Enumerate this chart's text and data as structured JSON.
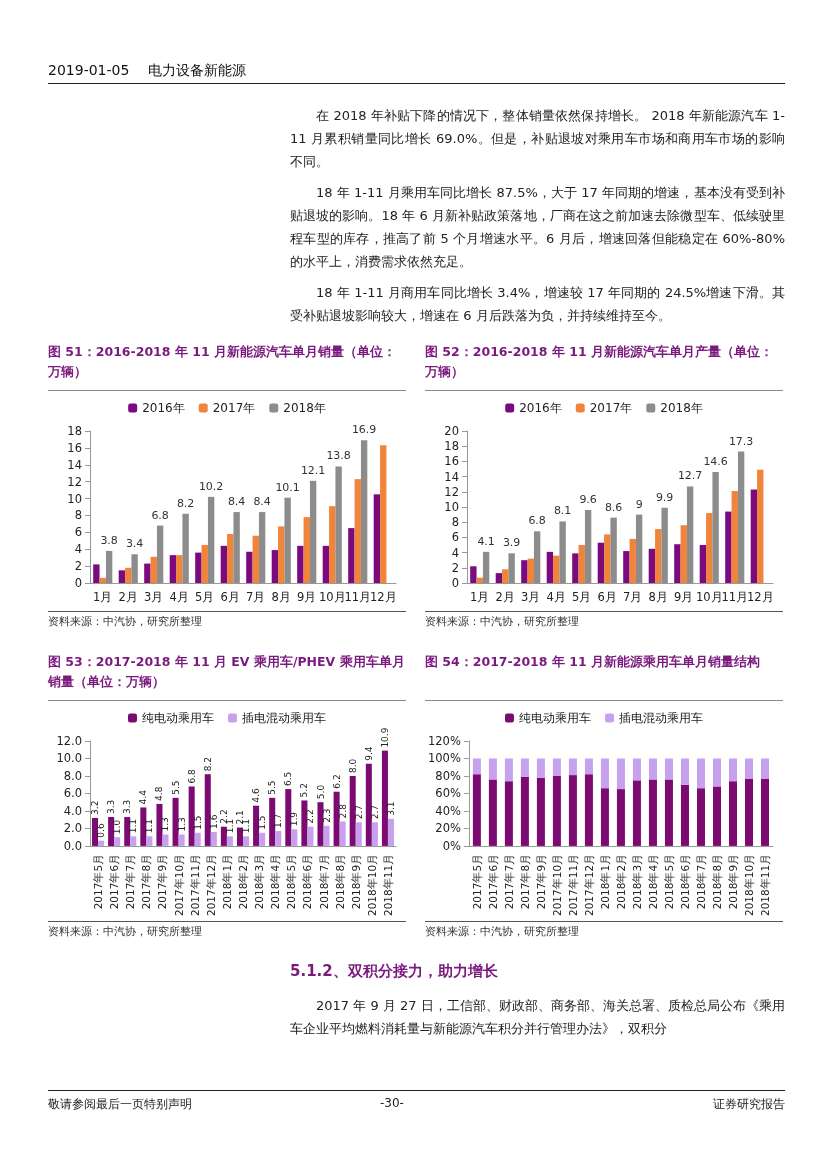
{
  "chart_data": [
    {
      "type": "bar",
      "title": "图 51：2016-2018 年 11 月新能源汽车单月销量（单位：万辆）",
      "categories": [
        "1月",
        "2月",
        "3月",
        "4月",
        "5月",
        "6月",
        "7月",
        "8月",
        "9月",
        "10月",
        "11月",
        "12月"
      ],
      "series": [
        {
          "name": "2016年",
          "color": "#7b0a7e",
          "values": [
            2.2,
            1.5,
            2.3,
            3.3,
            3.6,
            4.4,
            3.7,
            3.9,
            4.4,
            4.4,
            6.5,
            10.5
          ]
        },
        {
          "name": "2017年",
          "color": "#f0843a",
          "values": [
            0.6,
            1.8,
            3.1,
            3.3,
            4.5,
            5.8,
            5.6,
            6.7,
            7.8,
            9.1,
            12.3,
            16.3
          ]
        },
        {
          "name": "2018年",
          "color": "#8c8c8c",
          "values": [
            3.8,
            3.4,
            6.8,
            8.2,
            10.2,
            8.4,
            8.4,
            10.1,
            12.1,
            13.8,
            16.9,
            null
          ],
          "value_labels": [
            "3.8",
            "3.4",
            "6.8",
            "8.2",
            "10.2",
            "8.4",
            "8.4",
            "10.1",
            "12.1",
            "13.8",
            "16.9",
            null
          ]
        }
      ],
      "ylim": [
        0,
        18
      ],
      "yticks": [
        0,
        2,
        4,
        6,
        8,
        10,
        12,
        14,
        16,
        18
      ],
      "grid": false,
      "legend": "top",
      "annotations": [
        "资料来源：中汽协，研究所整理",
        "2019-01-05",
        "电力设备新能源",
        "在 2018 年补贴下降的情况下，整体销量依然保持增长。 2018 年新能源汽车 1-11 月累积销量同比增长 69.0%。但是，补贴退坡对乘用车市场和商用车市场的影响不同。",
        "18 年 1-11 月乘用车同比增长 87.5%，大于 17 年同期的增速，基本没有受到补贴退坡的影响。18 年 6 月新补贴政策落地，厂商在这之前加速去除微型车、低续驶里程车型的库存，推高了前 5 个月增速水平。6 月后，增速回落但能稳定在 60%-80%的水平上，消费需求依然充足。",
        "18 年 1-11 月商用车同比增长 3.4%，增速较 17 年同期的 24.5%增速下滑。其受补贴退坡影响较大，增速在 6 月后跌落为负，并持续维持至今。"
      ]
    },
    {
      "type": "bar",
      "title": "图 52：2016-2018 年 11 月新能源汽车单月产量（单位：万辆）",
      "categories": [
        "1月",
        "2月",
        "3月",
        "4月",
        "5月",
        "6月",
        "7月",
        "8月",
        "9月",
        "10月",
        "11月",
        "12月"
      ],
      "series": [
        {
          "name": "2016年",
          "color": "#7b0a7e",
          "values": [
            2.2,
            1.3,
            3.0,
            4.1,
            3.9,
            5.3,
            4.2,
            4.5,
            5.1,
            5.0,
            9.4,
            12.3
          ]
        },
        {
          "name": "2017年",
          "color": "#f0843a",
          "values": [
            0.7,
            1.8,
            3.2,
            3.6,
            5.0,
            6.4,
            5.8,
            7.1,
            7.6,
            9.2,
            12.1,
            14.9
          ]
        },
        {
          "name": "2018年",
          "color": "#8c8c8c",
          "values": [
            4.1,
            3.9,
            6.8,
            8.1,
            9.6,
            8.6,
            9,
            9.9,
            12.7,
            14.6,
            17.3,
            null
          ],
          "value_labels": [
            "4.1",
            "3.9",
            "6.8",
            "8.1",
            "9.6",
            "8.6",
            "9",
            "9.9",
            "12.7",
            "14.6",
            "17.3",
            null
          ]
        }
      ],
      "ylim": [
        0,
        20
      ],
      "yticks": [
        0,
        2,
        4,
        6,
        8,
        10,
        12,
        14,
        16,
        18,
        20
      ],
      "grid": false,
      "legend": "top",
      "annotations": [
        "资料来源：中汽协，研究所整理"
      ]
    },
    {
      "type": "bar",
      "title": "图 53：2017-2018 年 11 月 EV 乘用车/PHEV 乘用车单月销量（单位：万辆）",
      "categories": [
        "2017年5月",
        "2017年6月",
        "2017年7月",
        "2017年8月",
        "2017年9月",
        "2017年10月",
        "2017年11月",
        "2017年12月",
        "2018年1月",
        "2018年2月",
        "2018年3月",
        "2018年4月",
        "2018年5月",
        "2018年6月",
        "2018年7月",
        "2018年8月",
        "2018年9月",
        "2018年10月",
        "2018年11月"
      ],
      "series": [
        {
          "name": "纯电动乘用车",
          "color": "#7b0a72",
          "values": [
            3.2,
            3.3,
            3.3,
            4.4,
            4.8,
            5.5,
            6.8,
            8.2,
            2.2,
            2.1,
            4.6,
            5.5,
            6.5,
            5.2,
            5.0,
            6.2,
            8.0,
            9.4,
            10.9
          ],
          "value_labels": [
            "3.2",
            "3.3",
            "3.3",
            "4.4",
            "4.8",
            "5.5",
            "6.8",
            "8.2",
            "2.2",
            "2.1",
            "4.6",
            "5.5",
            "6.5",
            "5.2",
            "5.0",
            "6.2",
            "8.0",
            "9.4",
            "10.9"
          ]
        },
        {
          "name": "插电混动乘用车",
          "color": "#c7a0ee",
          "values": [
            0.6,
            1.0,
            1.1,
            1.1,
            1.3,
            1.3,
            1.5,
            1.6,
            1.1,
            1.1,
            1.5,
            1.7,
            1.9,
            2.2,
            2.3,
            2.8,
            2.7,
            2.7,
            3.1
          ],
          "value_labels": [
            "0.6",
            "1.0",
            "1.1",
            "1.1",
            "1.3",
            "1.3",
            "1.5",
            "1.6",
            "1.1",
            "1.1",
            "1.5",
            "1.7",
            "1.9",
            "2.2",
            "2.3",
            "2.8",
            "2.7",
            "2.7",
            "3.1"
          ]
        }
      ],
      "ylim": [
        0,
        12
      ],
      "yticks": [
        {
          "value": 0,
          "label": "0.0"
        },
        {
          "value": 2,
          "label": "2.0"
        },
        {
          "value": 4,
          "label": "4.0"
        },
        {
          "value": 6,
          "label": "6.0"
        },
        {
          "value": 8,
          "label": "8.0"
        },
        {
          "value": 10,
          "label": "10.0"
        },
        {
          "value": 12,
          "label": "12.0"
        }
      ],
      "grid": false,
      "legend": "top",
      "annotations": [
        "资料来源：中汽协，研究所整理"
      ]
    },
    {
      "type": "bar",
      "title": "图 54：2017-2018 年 11 月新能源乘用车单月销量结构",
      "categories": [
        "2017年5月",
        "2017年6月",
        "2017年7月",
        "2017年8月",
        "2017年9月",
        "2017年10月",
        "2017年11月",
        "2017年12月",
        "2018年1月",
        "2018年2月",
        "2018年3月",
        "2018年4月",
        "2018年5月",
        "2018年6月",
        "2018年7月",
        "2018年8月",
        "2018年9月",
        "2018年10月",
        "2018年11月"
      ],
      "stacked": true,
      "series": [
        {
          "name": "纯电动乘用车",
          "color": "#7b0a72",
          "values": [
            82,
            76,
            74,
            79,
            78,
            80,
            81,
            82,
            66,
            65,
            75,
            76,
            76,
            70,
            66,
            68,
            74,
            77,
            77
          ]
        },
        {
          "name": "插电混动乘用车",
          "color": "#c7a0ee",
          "values": [
            18,
            24,
            26,
            21,
            22,
            20,
            19,
            18,
            34,
            35,
            25,
            24,
            24,
            30,
            34,
            32,
            26,
            23,
            23
          ]
        }
      ],
      "ylim": [
        0,
        120
      ],
      "yticks": [
        {
          "value": 0,
          "label": "0%"
        },
        {
          "value": 20,
          "label": "20%"
        },
        {
          "value": 40,
          "label": "40%"
        },
        {
          "value": 60,
          "label": "60%"
        },
        {
          "value": 80,
          "label": "80%"
        },
        {
          "value": 100,
          "label": "100%"
        },
        {
          "value": 120,
          "label": "120%"
        }
      ],
      "grid": false,
      "legend": "top",
      "annotations": [
        "资料来源：中汽协，研究所整理",
        "5.1.2、双积分接力，助力增长",
        "2017 年 9 月 27 日，工信部、财政部、商务部、海关总署、质检总局公布《乘用车企业平均燃料消耗量与新能源汽车积分并行管理办法》，双积分",
        "敬请参阅最后一页特别声明",
        "-30-",
        "证券研究报告"
      ]
    }
  ]
}
